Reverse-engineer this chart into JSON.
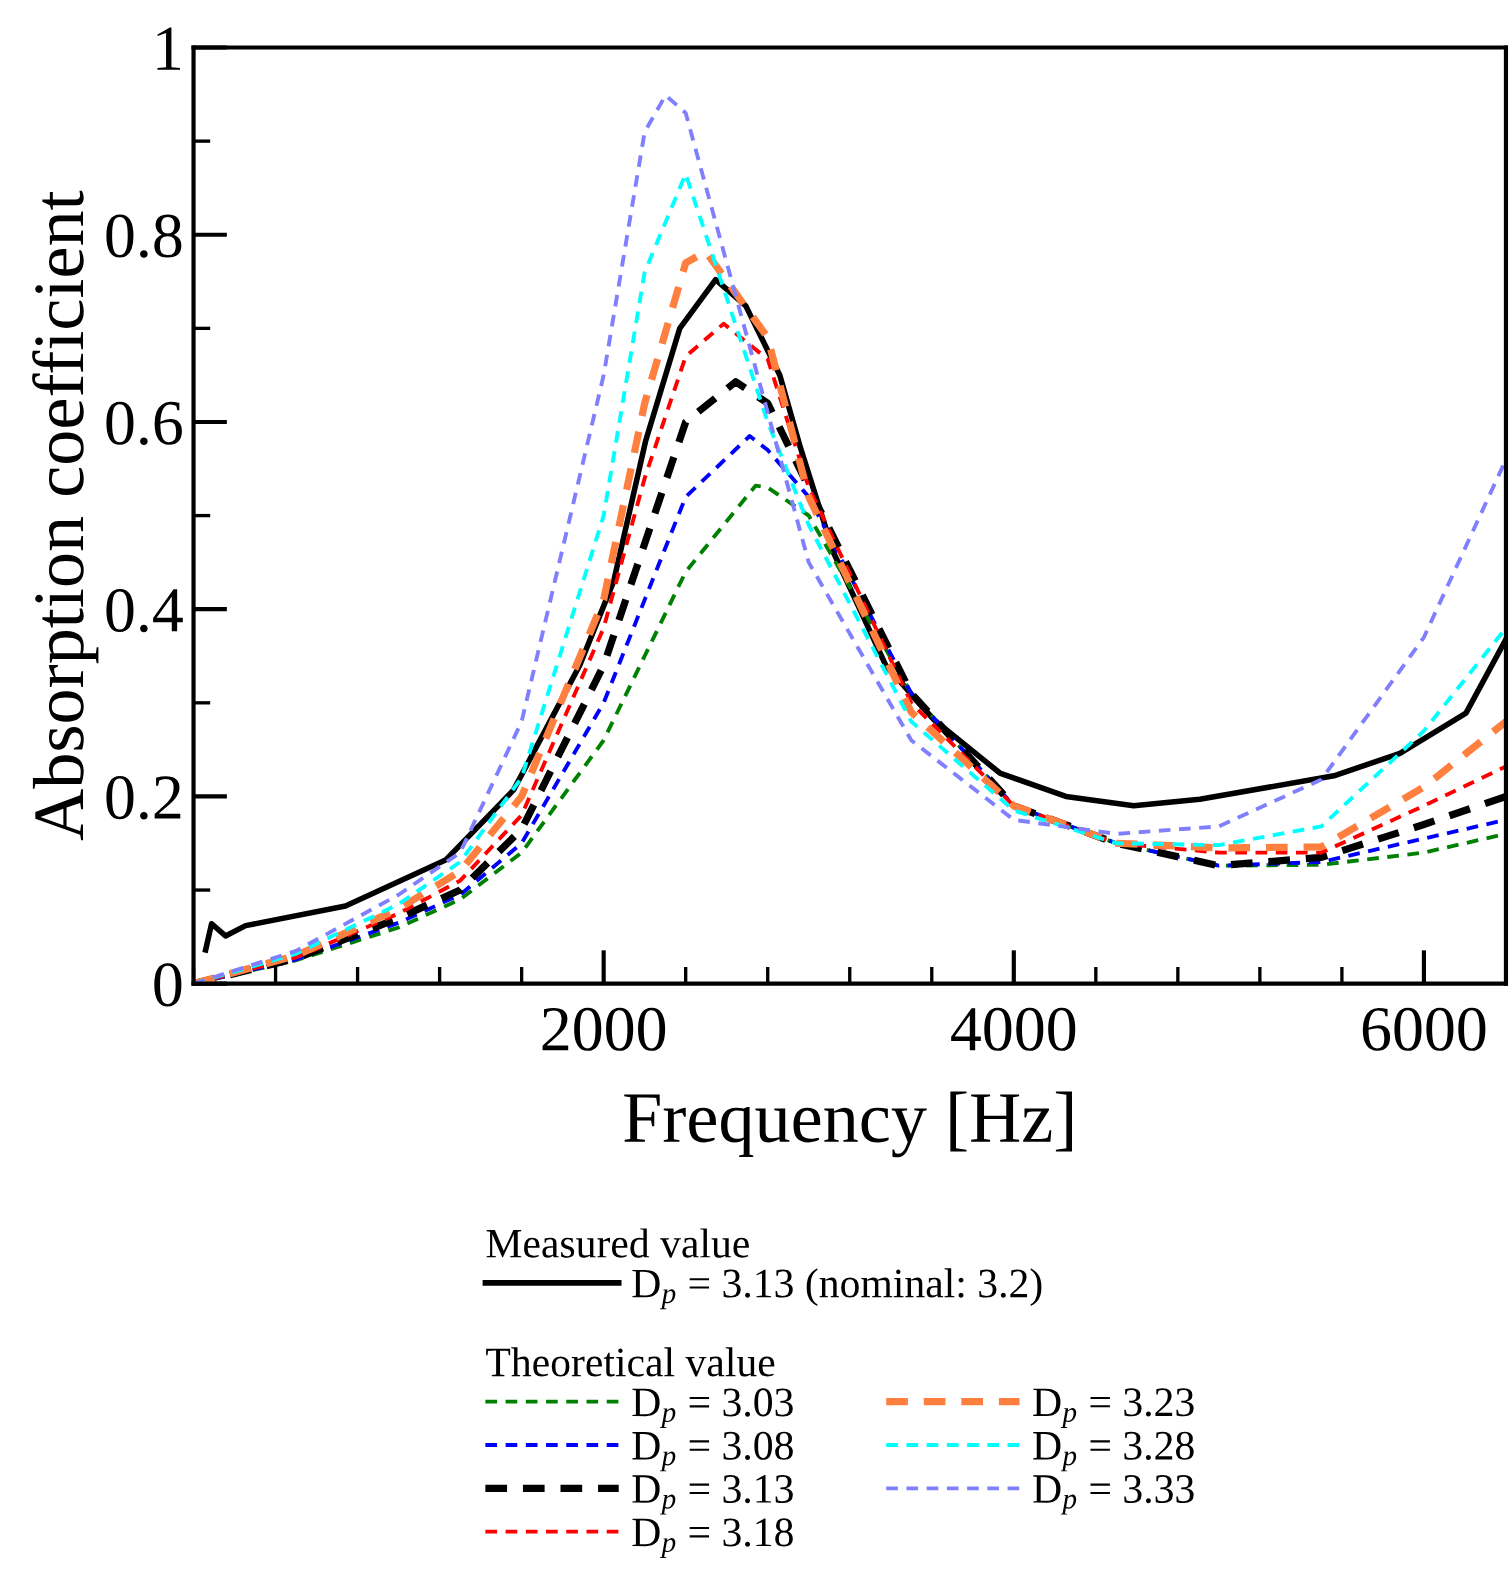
{
  "chart_data": {
    "type": "line",
    "xlabel": "Frequency [Hz]",
    "ylabel": "Absorption coefficient",
    "xlim": [
      0,
      6400
    ],
    "xticks": [
      2000,
      4000,
      6000
    ],
    "ylim": [
      0,
      1
    ],
    "yticks": [
      0,
      0.2,
      0.4,
      0.6,
      0.8,
      1
    ],
    "grid": false,
    "legend": "bottom",
    "annotations": [
      "Measured value",
      "Theoretical value"
    ],
    "series": [
      {
        "name": "D$_{p}$ = 3.13 (nominal: 3.2)",
        "color": "#000000",
        "line_style": "solid",
        "x": [
          59,
          88,
          156,
          254,
          741,
          1229,
          1561,
          1883,
          2049,
          2205,
          2371,
          2546,
          2693,
          2859,
          2956,
          3122,
          3376,
          3610,
          3932,
          4254,
          4585,
          4907,
          5561,
          5883,
          6205,
          6400
        ],
        "values": [
          0.036,
          0.064,
          0.051,
          0.062,
          0.083,
          0.132,
          0.207,
          0.34,
          0.43,
          0.58,
          0.7,
          0.752,
          0.724,
          0.65,
          0.575,
          0.46,
          0.34,
          0.282,
          0.225,
          0.2,
          0.19,
          0.197,
          0.222,
          0.246,
          0.289,
          0.368
        ]
      },
      {
        "name": "D$_{p}$ = 3.03",
        "color": "#008000",
        "line_style": "dashed",
        "x": [
          0,
          500,
          1000,
          1300,
          1600,
          2000,
          2200,
          2400,
          2741,
          2800,
          3000,
          3500,
          4000,
          4500,
          5000,
          5500,
          6000,
          6400
        ],
        "values": [
          0,
          0.025,
          0.06,
          0.09,
          0.14,
          0.26,
          0.35,
          0.44,
          0.532,
          0.53,
          0.5,
          0.31,
          0.19,
          0.15,
          0.126,
          0.127,
          0.14,
          0.16
        ]
      },
      {
        "name": "D$_{p}$ = 3.08",
        "color": "#0000ff",
        "line_style": "dashed",
        "x": [
          0,
          500,
          1000,
          1300,
          1600,
          2000,
          2200,
          2400,
          2712,
          2800,
          3000,
          3500,
          4000,
          4500,
          5000,
          5500,
          6000,
          6400
        ],
        "values": [
          0,
          0.026,
          0.065,
          0.095,
          0.15,
          0.3,
          0.41,
          0.52,
          0.585,
          0.57,
          0.52,
          0.31,
          0.19,
          0.15,
          0.126,
          0.13,
          0.155,
          0.175
        ]
      },
      {
        "name": "D$_{p}$ = 3.13",
        "color": "#000000",
        "line_style": "dashed",
        "x": [
          0,
          500,
          1000,
          1300,
          1600,
          2000,
          2200,
          2400,
          2644,
          2800,
          3000,
          3500,
          4000,
          4500,
          5000,
          5500,
          6000,
          6400
        ],
        "values": [
          0,
          0.027,
          0.07,
          0.1,
          0.165,
          0.34,
          0.47,
          0.6,
          0.643,
          0.62,
          0.53,
          0.31,
          0.19,
          0.15,
          0.126,
          0.135,
          0.17,
          0.2
        ]
      },
      {
        "name": "D$_{p}$ = 3.18",
        "color": "#ff0000",
        "line_style": "dashed",
        "x": [
          0,
          500,
          1000,
          1300,
          1600,
          2000,
          2200,
          2400,
          2585,
          2800,
          3000,
          3500,
          4000,
          4500,
          5000,
          5500,
          6000,
          6400
        ],
        "values": [
          0,
          0.028,
          0.075,
          0.11,
          0.18,
          0.38,
          0.54,
          0.67,
          0.705,
          0.667,
          0.53,
          0.3,
          0.19,
          0.15,
          0.14,
          0.14,
          0.19,
          0.232
        ]
      },
      {
        "name": "D$_{p}$ = 3.23",
        "color": "#ff7f3f",
        "line_style": "dashed",
        "x": [
          0,
          500,
          1000,
          1300,
          1600,
          2000,
          2200,
          2400,
          2498,
          2800,
          3000,
          3500,
          4000,
          4500,
          5000,
          5500,
          6000,
          6400
        ],
        "values": [
          0,
          0.03,
          0.08,
          0.12,
          0.2,
          0.41,
          0.62,
          0.77,
          0.782,
          0.69,
          0.52,
          0.29,
          0.19,
          0.15,
          0.145,
          0.146,
          0.21,
          0.28
        ]
      },
      {
        "name": "D$_{p}$ = 3.28",
        "color": "#00ffff",
        "line_style": "dashed",
        "x": [
          0,
          500,
          1000,
          1300,
          1600,
          2000,
          2200,
          2400,
          2800,
          3000,
          3500,
          4000,
          4500,
          5000,
          5500,
          6000,
          6400
        ],
        "values": [
          0,
          0.032,
          0.085,
          0.13,
          0.22,
          0.5,
          0.76,
          0.865,
          0.6,
          0.49,
          0.28,
          0.185,
          0.15,
          0.148,
          0.168,
          0.27,
          0.38
        ]
      },
      {
        "name": "D$_{p}$ = 3.33",
        "color": "#8080ff",
        "line_style": "dashed",
        "x": [
          0,
          500,
          1000,
          1300,
          1600,
          2000,
          2200,
          2302,
          2400,
          2800,
          3000,
          3500,
          4000,
          4500,
          5000,
          5500,
          6000,
          6400
        ],
        "values": [
          0,
          0.035,
          0.095,
          0.14,
          0.28,
          0.65,
          0.91,
          0.949,
          0.93,
          0.61,
          0.45,
          0.26,
          0.175,
          0.16,
          0.168,
          0.218,
          0.37,
          0.56
        ]
      }
    ]
  }
}
